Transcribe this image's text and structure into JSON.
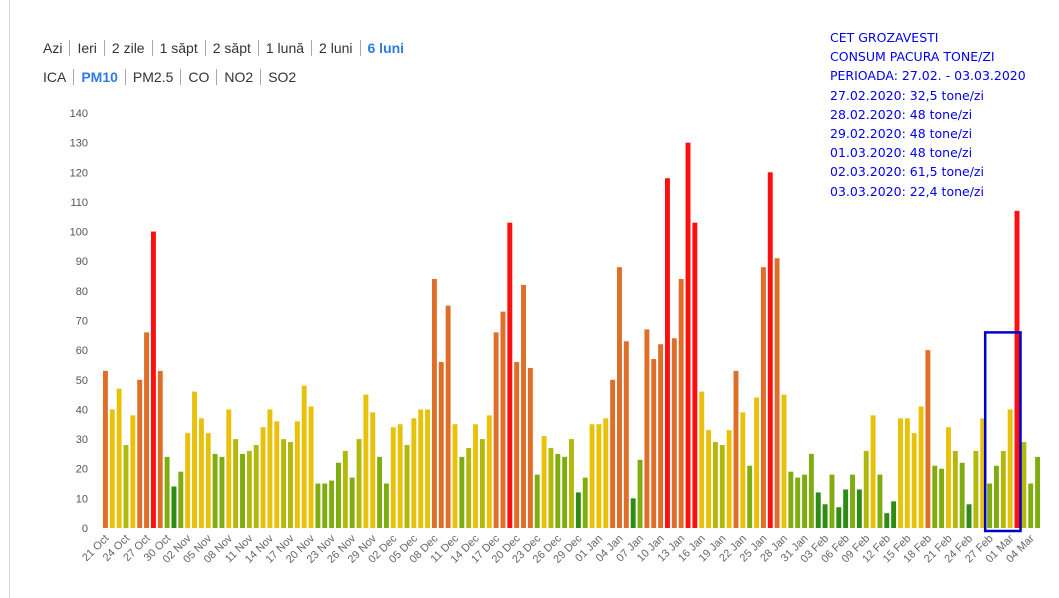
{
  "periods": {
    "items": [
      "Azi",
      "Ieri",
      "2 zile",
      "1 săpt",
      "2 săpt",
      "1 lună",
      "2 luni",
      "6 luni"
    ],
    "active": "6 luni"
  },
  "pollutants": {
    "items": [
      "ICA",
      "PM10",
      "PM2.5",
      "CO",
      "NO2",
      "SO2"
    ],
    "active": "PM10"
  },
  "annotation": {
    "lines": [
      "CET GROZAVESTI",
      "CONSUM PACURA TONE/ZI",
      "PERIOADA: 27.02. - 03.03.2020",
      "27.02.2020: 32,5 tone/zi",
      "28.02.2020: 48 tone/zi",
      "29.02.2020: 48 tone/zi",
      "01.03.2020: 48 tone/zi",
      "02.03.2020: 61,5 tone/zi",
      "03.03.2020: 22,4 tone/zi"
    ],
    "color": "#0000ee",
    "highlight_box_color": "#0000cc"
  },
  "chart_data": {
    "type": "bar",
    "title": "",
    "xlabel": "",
    "ylabel": "",
    "ylim": [
      0,
      140
    ],
    "yticks": [
      0,
      10,
      20,
      30,
      40,
      50,
      60,
      70,
      80,
      90,
      100,
      110,
      120,
      130,
      140
    ],
    "grid": false,
    "legend": "none",
    "x_tick_labels": [
      "21 Oct",
      "24 Oct",
      "27 Oct",
      "30 Oct",
      "02 Nov",
      "05 Nov",
      "08 Nov",
      "11 Nov",
      "14 Nov",
      "17 Nov",
      "20 Nov",
      "23 Nov",
      "26 Nov",
      "29 Nov",
      "02 Dec",
      "05 Dec",
      "08 Dec",
      "11 Dec",
      "14 Dec",
      "17 Dec",
      "20 Dec",
      "23 Dec",
      "26 Dec",
      "29 Dec",
      "01 Jan",
      "04 Jan",
      "07 Jan",
      "10 Jan",
      "13 Jan",
      "16 Jan",
      "19 Jan",
      "22 Jan",
      "25 Jan",
      "28 Jan",
      "31 Jan",
      "03 Feb",
      "06 Feb",
      "09 Feb",
      "12 Feb",
      "15 Feb",
      "18 Feb",
      "21 Feb",
      "24 Feb",
      "27 Feb",
      "01 Mar",
      "04 Mar"
    ],
    "highlight_range": [
      "27 Feb",
      "02 Mar"
    ],
    "color_scale": {
      "dark_green": "#2e8b14",
      "green": "#7fad10",
      "yellow_green": "#b3b80c",
      "yellow": "#e8c10a",
      "orange": "#df6f28",
      "red": "#ff1010"
    },
    "series": [
      {
        "values": [
          53,
          40,
          47,
          28,
          38,
          50,
          66,
          100,
          53,
          24,
          14,
          19,
          32,
          46,
          37,
          32,
          25,
          24,
          40,
          30,
          25,
          26,
          28,
          34,
          40,
          36,
          30,
          29,
          36,
          48,
          41,
          15,
          15,
          16,
          22,
          26,
          17,
          30,
          45,
          39,
          24,
          15,
          34,
          35,
          28,
          37,
          40,
          40,
          84,
          56,
          75,
          35,
          24,
          27,
          35,
          30,
          38,
          66,
          73,
          103,
          56,
          82,
          54,
          18,
          31,
          27,
          25,
          24,
          30,
          12,
          17,
          35,
          35,
          37,
          50,
          88,
          63,
          10,
          23,
          67,
          57,
          62,
          118,
          64,
          84,
          130,
          103,
          46,
          33,
          29,
          28,
          33,
          53,
          39,
          21,
          44,
          88,
          120,
          91,
          45,
          19,
          17,
          18,
          25,
          12,
          8,
          18,
          7,
          13,
          18,
          13,
          26,
          38,
          18,
          5,
          9,
          37,
          37,
          32,
          41,
          60,
          21,
          20,
          34,
          26,
          22,
          8,
          26,
          37,
          15,
          21,
          26,
          40,
          107,
          29,
          15,
          24
        ]
      }
    ]
  }
}
